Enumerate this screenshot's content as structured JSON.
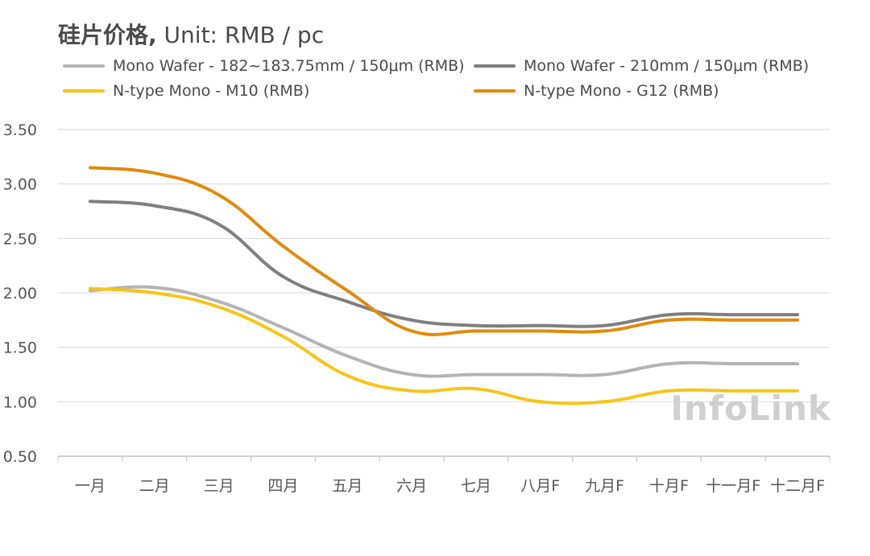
{
  "title": {
    "main": "硅片价格,",
    "unit": "Unit: RMB / pc"
  },
  "watermark": "InfoLink",
  "chart_data": {
    "type": "line",
    "title": "硅片价格, Unit: RMB / pc",
    "xlabel": "",
    "ylabel": "",
    "ylim": [
      0.5,
      3.5
    ],
    "yticks": [
      "0.50",
      "1.00",
      "1.50",
      "2.00",
      "2.50",
      "3.00",
      "3.50"
    ],
    "grid": true,
    "legend_position": "top",
    "categories": [
      "一月",
      "二月",
      "三月",
      "四月",
      "五月",
      "六月",
      "七月",
      "八月F",
      "九月F",
      "十月F",
      "十一月F",
      "十二月F"
    ],
    "series": [
      {
        "name": "Mono Wafer - 182~183.75mm / 150μm (RMB)",
        "color": "#b3b3b3",
        "values": [
          2.02,
          2.05,
          1.92,
          1.68,
          1.42,
          1.25,
          1.25,
          1.25,
          1.25,
          1.35,
          1.35,
          1.35
        ]
      },
      {
        "name": "Mono Wafer - 210mm / 150μm (RMB)",
        "color": "#7f7f7f",
        "values": [
          2.84,
          2.8,
          2.63,
          2.15,
          1.92,
          1.75,
          1.7,
          1.7,
          1.7,
          1.8,
          1.8,
          1.8
        ]
      },
      {
        "name": "N-type Mono - M10 (RMB)",
        "color": "#f5c518",
        "values": [
          2.04,
          2.0,
          1.87,
          1.6,
          1.24,
          1.1,
          1.12,
          1.0,
          1.0,
          1.1,
          1.1,
          1.1
        ]
      },
      {
        "name": "N-type Mono - G12 (RMB)",
        "color": "#e08a0e",
        "values": [
          3.15,
          3.1,
          2.9,
          2.43,
          2.02,
          1.65,
          1.65,
          1.65,
          1.65,
          1.75,
          1.75,
          1.75
        ]
      }
    ]
  }
}
